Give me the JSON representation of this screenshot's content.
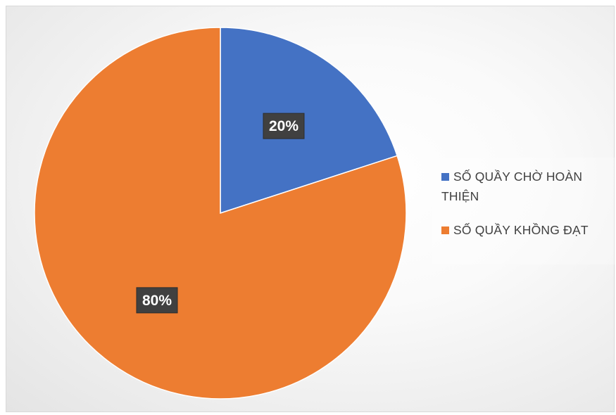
{
  "chart_data": {
    "type": "pie",
    "title": "",
    "slices": [
      {
        "name": "SỐ QUẦY CHỜ HOÀN THIỆN",
        "name_lines": [
          "SỐ QUẦY CHỜ HOÀN",
          "THIỆN"
        ],
        "value": 20,
        "label": "20%",
        "color": "#4472c4"
      },
      {
        "name": "SỐ QUẦY KHỒNG ĐẠT",
        "name_lines": [
          "SỐ QUẦY KHỒNG ĐẠT"
        ],
        "value": 80,
        "label": "80%",
        "color": "#ed7d31"
      }
    ],
    "legend_position": "right",
    "data_labels": "percentage"
  }
}
